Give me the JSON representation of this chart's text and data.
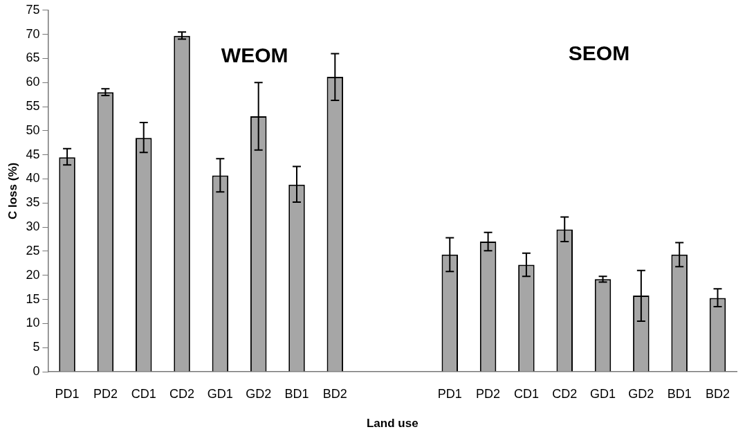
{
  "chart_data": {
    "type": "bar",
    "xlabel": "Land use",
    "ylabel": "C loss (%)",
    "annotations": [
      "WEOM",
      "SEOM"
    ],
    "categories": [
      "PD1",
      "PD2",
      "CD1",
      "CD2",
      "GD1",
      "GD2",
      "BD1",
      "BD2",
      null,
      null,
      "PD1",
      "PD2",
      "CD1",
      "CD2",
      "GD1",
      "GD2",
      "BD1",
      "BD2"
    ],
    "values": [
      44.5,
      58,
      48.5,
      69.7,
      40.7,
      53,
      38.8,
      61.2,
      null,
      null,
      24.3,
      27,
      22.2,
      29.5,
      19.2,
      15.8,
      24.3,
      15.3
    ],
    "errors": [
      [
        42.9,
        46.3
      ],
      [
        57.3,
        58.7
      ],
      [
        45.5,
        51.7
      ],
      [
        69,
        70.5
      ],
      [
        37.3,
        44.2
      ],
      [
        46,
        60
      ],
      [
        35.2,
        42.6
      ],
      [
        56.3,
        66
      ],
      null,
      null,
      [
        20.8,
        27.8
      ],
      [
        25.1,
        28.9
      ],
      [
        19.8,
        24.6
      ],
      [
        27,
        32.1
      ],
      [
        18.6,
        19.8
      ],
      [
        10.5,
        21
      ],
      [
        21.8,
        26.8
      ],
      [
        13.5,
        17.2
      ]
    ],
    "color": "#a6a6a6",
    "ylim": [
      0,
      75
    ],
    "yticks": [
      0,
      5,
      10,
      15,
      20,
      25,
      30,
      35,
      40,
      45,
      50,
      55,
      60,
      65,
      70,
      75
    ],
    "grid": false,
    "legend": false
  }
}
